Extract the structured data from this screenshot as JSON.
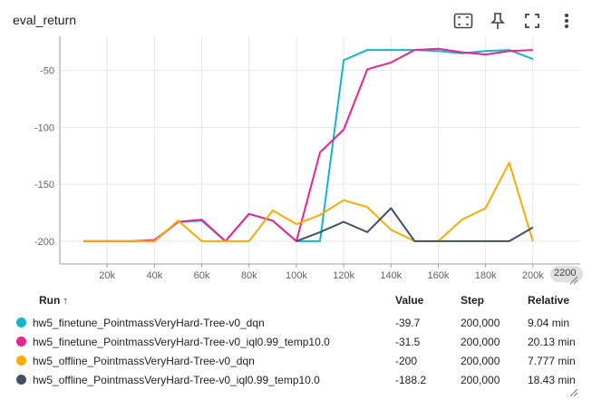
{
  "card": {
    "title": "eval_return"
  },
  "toolbar": {
    "icons": [
      "fit-domain-icon",
      "pin-icon",
      "fullscreen-icon",
      "more-vert-icon"
    ]
  },
  "colors": {
    "grid": "#e6e6e6",
    "axis": "#9e9e9e"
  },
  "chart_data": {
    "type": "line",
    "title": "eval_return",
    "xlabel": "",
    "ylabel": "",
    "xlim": [
      0,
      220000
    ],
    "ylim": [
      -220,
      -20
    ],
    "x_ticks": [
      20000,
      40000,
      60000,
      80000,
      100000,
      120000,
      140000,
      160000,
      180000,
      200000
    ],
    "x_tick_labels": [
      "20k",
      "40k",
      "60k",
      "80k",
      "100k",
      "120k",
      "140k",
      "160k",
      "180k",
      "200k"
    ],
    "x_last_label": "2200",
    "y_ticks": [
      -50,
      -100,
      -150,
      -200
    ],
    "y_tick_labels": [
      "-50",
      "-100",
      "-150",
      "-200"
    ],
    "grid": true,
    "series": [
      {
        "name": "hw5_finetune_PointmassVeryHard-Tree-v0_dqn",
        "color": "#12b5cb",
        "x": [
          10000,
          20000,
          30000,
          40000,
          50000,
          60000,
          70000,
          80000,
          90000,
          100000,
          110000,
          120000,
          130000,
          140000,
          150000,
          160000,
          170000,
          180000,
          190000,
          200000
        ],
        "y": [
          -200,
          -200,
          -200,
          -200,
          -183,
          -182,
          -200,
          -176,
          -182,
          -200,
          -200,
          -41,
          -32,
          -32,
          -32,
          -33,
          -35,
          -33,
          -32,
          -40
        ]
      },
      {
        "name": "hw5_finetune_PointmassVeryHard-Tree-v0_iql0.99_temp10.0",
        "color": "#e52592",
        "x": [
          10000,
          20000,
          30000,
          40000,
          50000,
          60000,
          70000,
          80000,
          90000,
          100000,
          110000,
          120000,
          130000,
          140000,
          150000,
          160000,
          170000,
          180000,
          190000,
          200000
        ],
        "y": [
          -200,
          -200,
          -200,
          -199,
          -183,
          -181,
          -200,
          -176,
          -182,
          -200,
          -122,
          -102,
          -49,
          -43,
          -32,
          -31,
          -34,
          -36,
          -33,
          -32
        ]
      },
      {
        "name": "hw5_offline_PointmassVeryHard-Tree-v0_dqn",
        "color": "#f9ab00",
        "x": [
          10000,
          20000,
          30000,
          40000,
          50000,
          60000,
          70000,
          80000,
          90000,
          100000,
          110000,
          120000,
          130000,
          140000,
          150000,
          160000,
          170000,
          180000,
          190000,
          200000
        ],
        "y": [
          -200,
          -200,
          -200,
          -200,
          -182,
          -200,
          -200,
          -200,
          -173,
          -185,
          -177,
          -164,
          -170,
          -190,
          -200,
          -200,
          -181,
          -171,
          -131,
          -200
        ]
      },
      {
        "name": "hw5_offline_PointmassVeryHard-Tree-v0_iql0.99_temp10.0",
        "color": "#425066",
        "x": [
          100000,
          110000,
          120000,
          130000,
          140000,
          150000,
          160000,
          170000,
          180000,
          190000,
          200000
        ],
        "y": [
          -200,
          -192,
          -183,
          -192,
          -171,
          -200,
          -200,
          -200,
          -200,
          -200,
          -188
        ]
      }
    ]
  },
  "table": {
    "headers": {
      "run": "Run",
      "sort": "↑",
      "value": "Value",
      "step": "Step",
      "relative": "Relative"
    },
    "rows": [
      {
        "color": "#12b5cb",
        "run": "hw5_finetune_PointmassVeryHard-Tree-v0_dqn",
        "value": "-39.7",
        "step": "200,000",
        "relative": "9.04 min"
      },
      {
        "color": "#e52592",
        "run": "hw5_finetune_PointmassVeryHard-Tree-v0_iql0.99_temp10.0",
        "value": "-31.5",
        "step": "200,000",
        "relative": "20.13 min"
      },
      {
        "color": "#f9ab00",
        "run": "hw5_offline_PointmassVeryHard-Tree-v0_dqn",
        "value": "-200",
        "step": "200,000",
        "relative": "7.777 min"
      },
      {
        "color": "#425066",
        "run": "hw5_offline_PointmassVeryHard-Tree-v0_iql0.99_temp10.0",
        "value": "-188.2",
        "step": "200,000",
        "relative": "18.43 min"
      }
    ]
  }
}
